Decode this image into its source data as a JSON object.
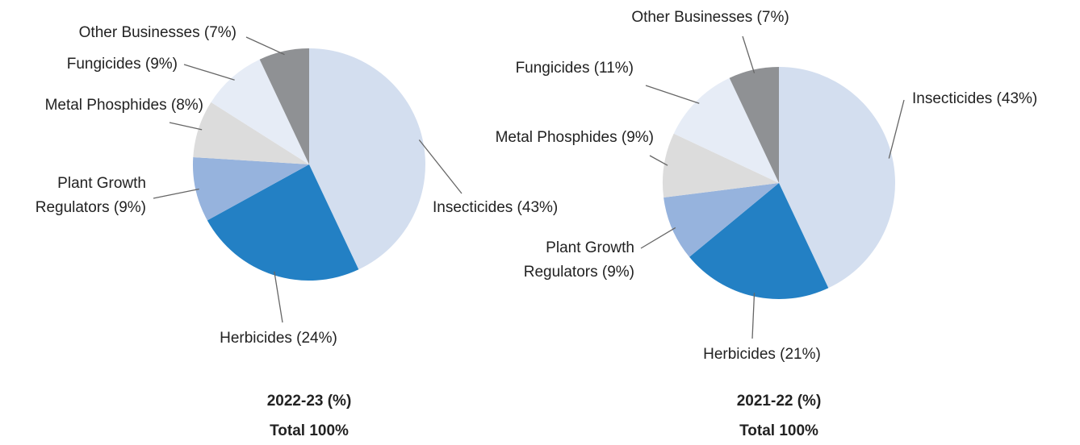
{
  "chart_data": [
    {
      "type": "pie",
      "title": "2022-23 (%)",
      "subtitle": "Total 100%",
      "categories": [
        "Insecticides (43%)",
        "Herbicides (24%)",
        "Plant Growth Regulators (9%)",
        "Metal Phosphides (8%)",
        "Fungicides (9%)",
        "Other Businesses (7%)"
      ],
      "values": [
        43,
        24,
        9,
        8,
        9,
        7
      ],
      "colors": [
        "#d3deef",
        "#2380c4",
        "#96b3dd",
        "#dcdcdc",
        "#e6ecf6",
        "#8f9194"
      ]
    },
    {
      "type": "pie",
      "title": "2021-22 (%)",
      "subtitle": "Total 100%",
      "categories": [
        "Insecticides (43%)",
        "Herbicides (21%)",
        "Plant Growth Regulators (9%)",
        "Metal Phosphides (9%)",
        "Fungicides (11%)",
        "Other Businesses (7%)"
      ],
      "values": [
        43,
        21,
        9,
        9,
        11,
        7
      ],
      "colors": [
        "#d3deef",
        "#2380c4",
        "#96b3dd",
        "#dcdcdc",
        "#e6ecf6",
        "#8f9194"
      ]
    }
  ]
}
